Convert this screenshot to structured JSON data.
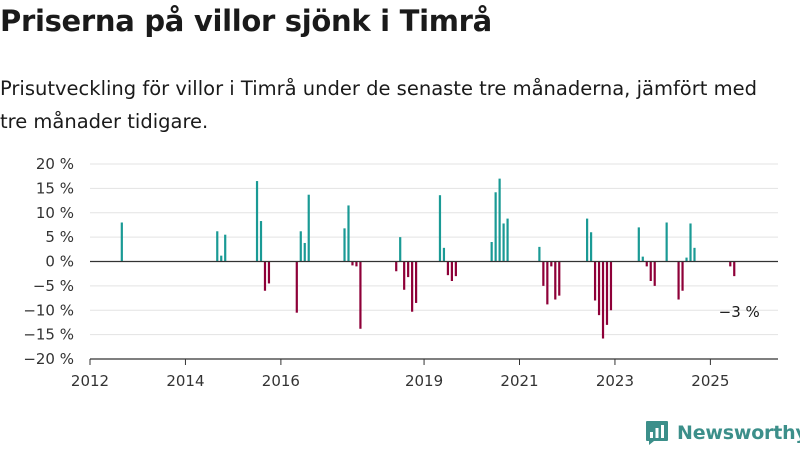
{
  "title": "Priserna på villor sjönk i Timrå",
  "subtitle": "Prisutveckling för villor i Timrå under de senaste tre månaderna, jämfört med tre månader tidigare.",
  "brand": {
    "name": "Newsworthy",
    "icon": "newsworthy-logo-icon",
    "color": "#3c8f8a"
  },
  "chart_data": {
    "type": "bar",
    "title": "",
    "xlabel": "",
    "ylabel": "",
    "ylim": [
      -20,
      20
    ],
    "yticks": [
      20,
      15,
      10,
      5,
      0,
      -5,
      -10,
      -15,
      -20
    ],
    "ytick_labels": [
      "20 %",
      "15 %",
      "10 %",
      "5 %",
      "0 %",
      "−5 %",
      "−10 %",
      "−15 %",
      "−20 %"
    ],
    "xlim": [
      "2012-01",
      "2026-06"
    ],
    "xticks": [
      "2012",
      "2014",
      "2016",
      "2019",
      "2021",
      "2023",
      "2025"
    ],
    "grid": true,
    "colors": {
      "positive": "#1a9a95",
      "negative": "#8e0038",
      "grid": "#e3e3e3",
      "zero": "#333333"
    },
    "annotation": {
      "text": "−3 %",
      "date": "2025-07",
      "value": -3
    },
    "bars": [
      {
        "date": "2012-09",
        "value": 8
      },
      {
        "date": "2014-09",
        "value": 6.2
      },
      {
        "date": "2014-10",
        "value": 1.2
      },
      {
        "date": "2014-11",
        "value": 5.5
      },
      {
        "date": "2015-07",
        "value": 16.5
      },
      {
        "date": "2015-08",
        "value": 8.3
      },
      {
        "date": "2015-09",
        "value": -6
      },
      {
        "date": "2015-10",
        "value": -4.5
      },
      {
        "date": "2016-05",
        "value": -10.5
      },
      {
        "date": "2016-06",
        "value": 6.2
      },
      {
        "date": "2016-07",
        "value": 3.8
      },
      {
        "date": "2016-08",
        "value": 13.7
      },
      {
        "date": "2017-05",
        "value": 6.8
      },
      {
        "date": "2017-06",
        "value": 11.5
      },
      {
        "date": "2017-07",
        "value": -0.8
      },
      {
        "date": "2017-08",
        "value": -1
      },
      {
        "date": "2017-09",
        "value": -13.8
      },
      {
        "date": "2018-06",
        "value": -2
      },
      {
        "date": "2018-07",
        "value": 5
      },
      {
        "date": "2018-08",
        "value": -5.8
      },
      {
        "date": "2018-09",
        "value": -3.2
      },
      {
        "date": "2018-10",
        "value": -10.3
      },
      {
        "date": "2018-11",
        "value": -8.5
      },
      {
        "date": "2019-05",
        "value": 13.6
      },
      {
        "date": "2019-06",
        "value": 2.8
      },
      {
        "date": "2019-07",
        "value": -2.8
      },
      {
        "date": "2019-08",
        "value": -4
      },
      {
        "date": "2019-09",
        "value": -3
      },
      {
        "date": "2020-06",
        "value": 4
      },
      {
        "date": "2020-07",
        "value": 14.2
      },
      {
        "date": "2020-08",
        "value": 17
      },
      {
        "date": "2020-09",
        "value": 7.8
      },
      {
        "date": "2020-10",
        "value": 8.8
      },
      {
        "date": "2021-06",
        "value": 3
      },
      {
        "date": "2021-07",
        "value": -5
      },
      {
        "date": "2021-08",
        "value": -8.8
      },
      {
        "date": "2021-09",
        "value": -1
      },
      {
        "date": "2021-10",
        "value": -7.8
      },
      {
        "date": "2021-11",
        "value": -7
      },
      {
        "date": "2022-06",
        "value": 8.8
      },
      {
        "date": "2022-07",
        "value": 6
      },
      {
        "date": "2022-08",
        "value": -8
      },
      {
        "date": "2022-09",
        "value": -11
      },
      {
        "date": "2022-10",
        "value": -15.8
      },
      {
        "date": "2022-11",
        "value": -13
      },
      {
        "date": "2022-12",
        "value": -10
      },
      {
        "date": "2023-07",
        "value": 7
      },
      {
        "date": "2023-08",
        "value": 1
      },
      {
        "date": "2023-09",
        "value": -1
      },
      {
        "date": "2023-10",
        "value": -4
      },
      {
        "date": "2023-11",
        "value": -5
      },
      {
        "date": "2024-02",
        "value": 8
      },
      {
        "date": "2024-05",
        "value": -7.8
      },
      {
        "date": "2024-06",
        "value": -6
      },
      {
        "date": "2024-07",
        "value": 0.8
      },
      {
        "date": "2024-08",
        "value": 7.8
      },
      {
        "date": "2024-09",
        "value": 2.8
      },
      {
        "date": "2025-06",
        "value": -1
      },
      {
        "date": "2025-07",
        "value": -3
      }
    ]
  }
}
